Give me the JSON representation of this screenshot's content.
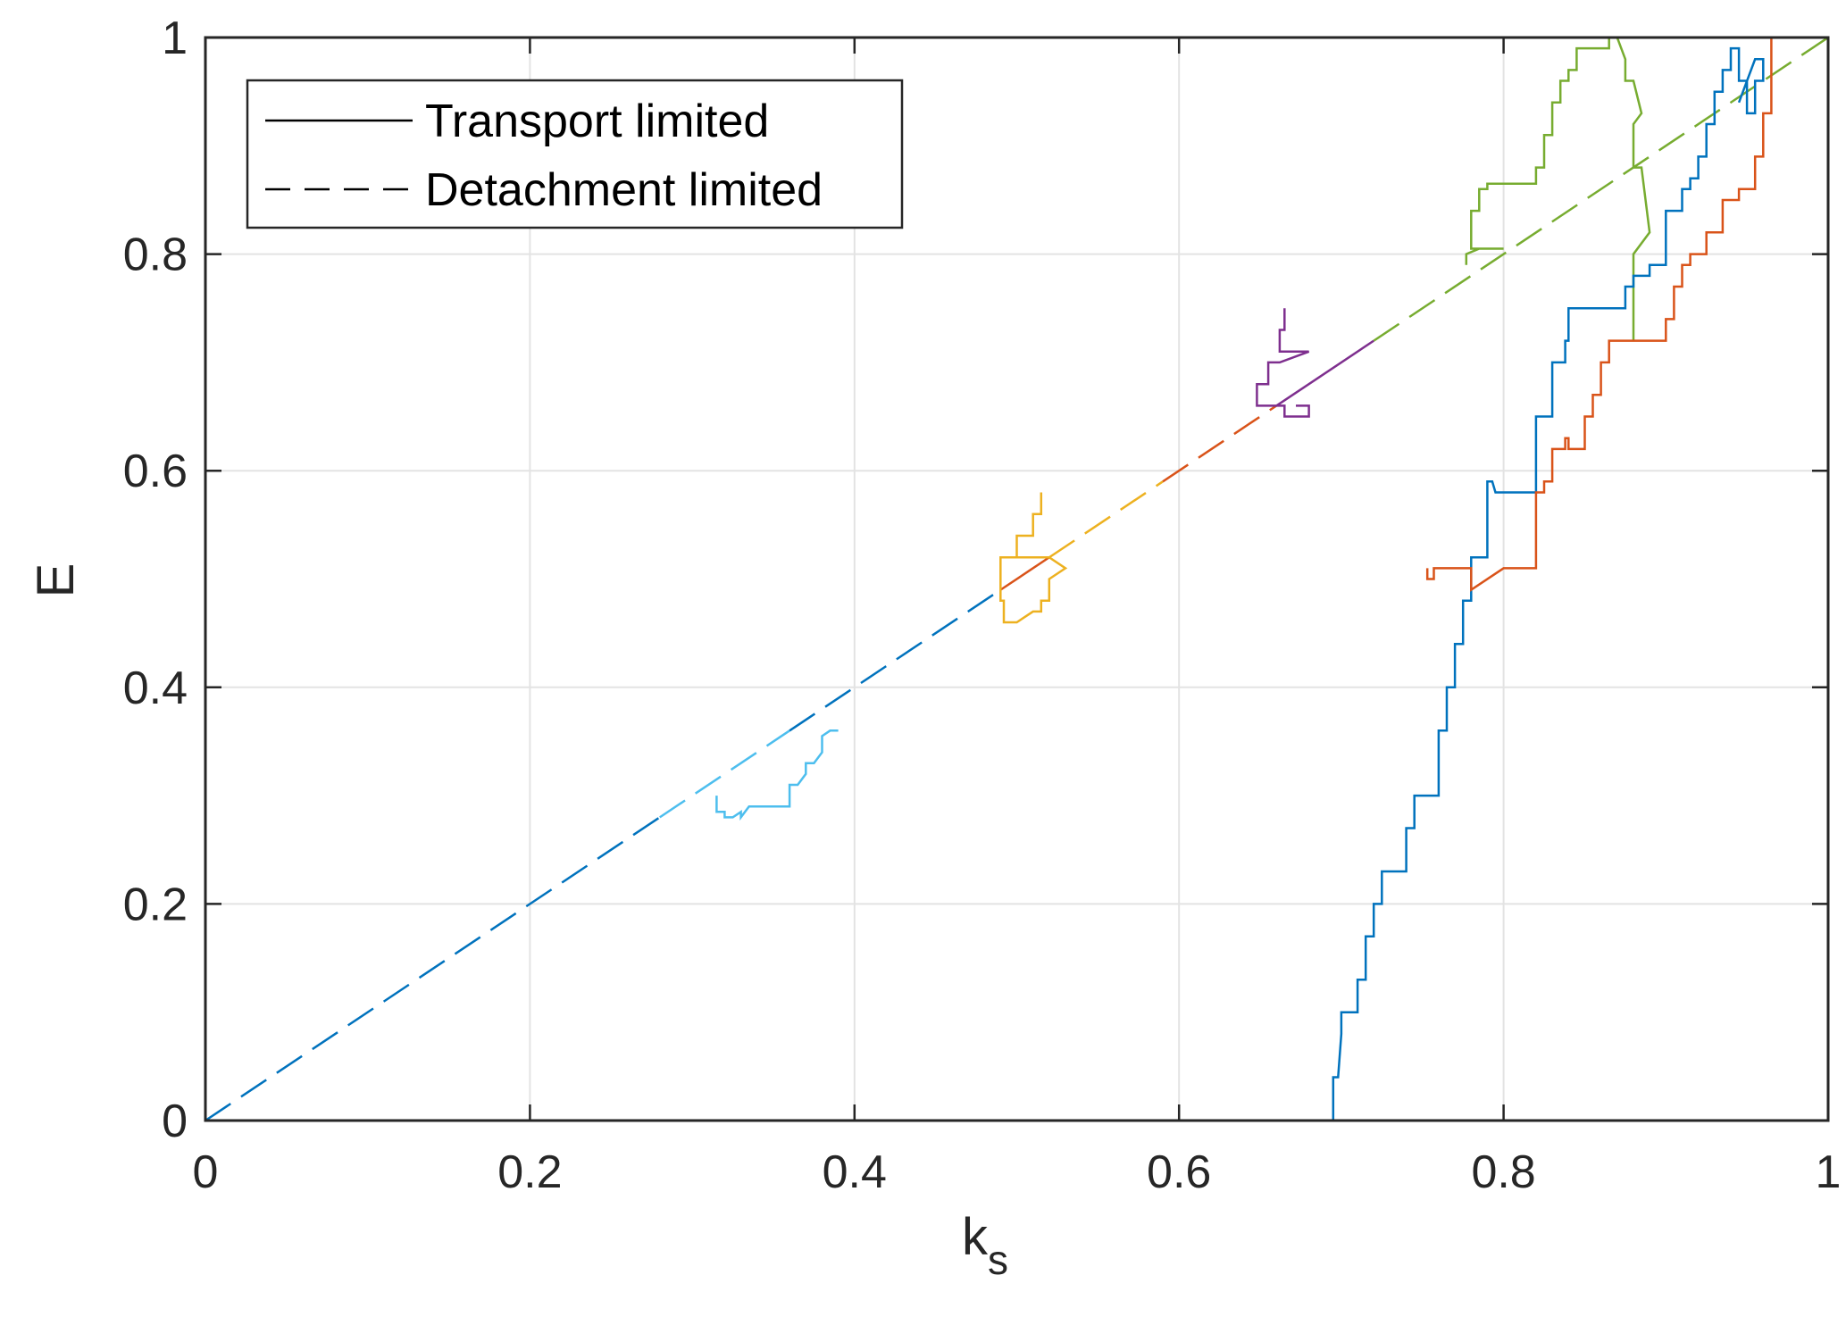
{
  "chart_data": {
    "type": "line",
    "xlabel": "k",
    "xlabel_subscript": "s",
    "ylabel": "E",
    "xlim": [
      0,
      1
    ],
    "ylim": [
      0,
      1
    ],
    "xticks": [
      0,
      0.2,
      0.4,
      0.6,
      0.8,
      1
    ],
    "yticks": [
      0,
      0.2,
      0.4,
      0.6,
      0.8,
      1
    ],
    "xtick_labels": [
      "0",
      "0.2",
      "0.4",
      "0.6",
      "0.8",
      "1"
    ],
    "ytick_labels": [
      "0",
      "0.2",
      "0.4",
      "0.6",
      "0.8",
      "1"
    ],
    "grid": true,
    "legend": {
      "position": "top-left",
      "entries": [
        {
          "label": "Transport limited",
          "style": "solid",
          "color": "#000000"
        },
        {
          "label": "Detachment limited",
          "style": "dashed",
          "color": "#000000"
        }
      ]
    },
    "diagonal": {
      "color": "#0072BD",
      "segments": [
        {
          "color": "#0072BD",
          "style": "dashed",
          "x": [
            0,
            0.28
          ]
        },
        {
          "color": "#4DBEEE",
          "style": "dashed",
          "x": [
            0.28,
            0.36
          ]
        },
        {
          "color": "#0072BD",
          "style": "dashed",
          "x": [
            0.36,
            0.49
          ]
        },
        {
          "color": "#D95319",
          "style": "solid",
          "x": [
            0.49,
            0.52
          ]
        },
        {
          "color": "#EDB120",
          "style": "dashed",
          "x": [
            0.52,
            0.59
          ]
        },
        {
          "color": "#D95319",
          "style": "dashed",
          "x": [
            0.59,
            0.66
          ]
        },
        {
          "color": "#7E2F8E",
          "style": "solid",
          "x": [
            0.66,
            0.72
          ]
        },
        {
          "color": "#77AC30",
          "style": "dashed",
          "x": [
            0.72,
            1.0
          ]
        }
      ]
    },
    "series": [
      {
        "color": "#4DBEEE",
        "x": [
          0.315,
          0.315,
          0.32,
          0.32,
          0.325,
          0.33,
          0.33,
          0.335,
          0.34,
          0.36,
          0.36,
          0.365,
          0.37,
          0.37,
          0.375,
          0.38,
          0.38,
          0.385,
          0.39
        ],
        "y": [
          0.3,
          0.285,
          0.285,
          0.28,
          0.28,
          0.285,
          0.28,
          0.29,
          0.29,
          0.29,
          0.31,
          0.31,
          0.32,
          0.33,
          0.33,
          0.34,
          0.355,
          0.36,
          0.36
        ]
      },
      {
        "color": "#EDB120",
        "x": [
          0.515,
          0.515,
          0.51,
          0.51,
          0.5,
          0.5,
          0.49,
          0.49,
          0.492,
          0.492,
          0.5,
          0.51,
          0.51,
          0.515,
          0.515,
          0.52,
          0.52,
          0.53,
          0.52,
          0.5,
          0.49,
          0.49
        ],
        "y": [
          0.58,
          0.56,
          0.56,
          0.54,
          0.54,
          0.52,
          0.52,
          0.48,
          0.48,
          0.46,
          0.46,
          0.47,
          0.47,
          0.47,
          0.48,
          0.48,
          0.5,
          0.51,
          0.52,
          0.52,
          0.52,
          0.5
        ]
      },
      {
        "color": "#7E2F8E",
        "x": [
          0.665,
          0.665,
          0.662,
          0.662,
          0.67,
          0.68,
          0.662,
          0.655,
          0.655,
          0.648,
          0.648,
          0.66,
          0.665,
          0.665,
          0.68,
          0.68,
          0.672
        ],
        "y": [
          0.75,
          0.73,
          0.73,
          0.71,
          0.71,
          0.71,
          0.7,
          0.7,
          0.68,
          0.68,
          0.66,
          0.66,
          0.66,
          0.65,
          0.65,
          0.66,
          0.66
        ]
      },
      {
        "color": "#77AC30",
        "x": [
          0.777,
          0.777,
          0.785,
          0.8,
          0.78,
          0.78,
          0.785,
          0.785,
          0.79,
          0.79,
          0.82,
          0.82,
          0.825,
          0.825,
          0.83,
          0.83,
          0.835,
          0.835,
          0.84,
          0.84,
          0.845,
          0.845,
          0.865,
          0.865,
          0.87,
          0.875,
          0.875,
          0.88,
          0.885,
          0.88,
          0.88,
          0.885,
          0.89,
          0.88,
          0.88
        ],
        "y": [
          0.79,
          0.8,
          0.805,
          0.805,
          0.805,
          0.84,
          0.84,
          0.86,
          0.86,
          0.865,
          0.865,
          0.88,
          0.88,
          0.91,
          0.91,
          0.94,
          0.94,
          0.96,
          0.96,
          0.97,
          0.97,
          0.99,
          0.99,
          1.0,
          1.0,
          0.98,
          0.96,
          0.96,
          0.93,
          0.92,
          0.88,
          0.88,
          0.82,
          0.8,
          0.72
        ]
      },
      {
        "color": "#0072BD",
        "x": [
          0.695,
          0.695,
          0.698,
          0.7,
          0.7,
          0.71,
          0.71,
          0.715,
          0.715,
          0.72,
          0.72,
          0.725,
          0.725,
          0.73,
          0.73,
          0.74,
          0.74,
          0.745,
          0.745,
          0.75,
          0.75,
          0.76,
          0.76,
          0.765,
          0.765,
          0.77,
          0.77,
          0.775,
          0.775,
          0.78,
          0.78,
          0.79,
          0.79,
          0.793,
          0.795,
          0.81,
          0.81,
          0.82,
          0.82,
          0.83,
          0.83,
          0.838,
          0.838,
          0.84,
          0.84,
          0.87,
          0.87,
          0.875,
          0.875,
          0.88,
          0.88,
          0.89,
          0.89,
          0.9,
          0.9,
          0.91,
          0.91,
          0.915,
          0.915,
          0.92,
          0.92,
          0.925,
          0.925,
          0.93,
          0.93,
          0.935,
          0.935,
          0.94,
          0.94,
          0.945,
          0.945,
          0.95,
          0.95,
          0.955,
          0.955,
          0.96,
          0.96,
          0.955,
          0.945
        ],
        "y": [
          0.0,
          0.04,
          0.04,
          0.08,
          0.1,
          0.1,
          0.13,
          0.13,
          0.17,
          0.17,
          0.2,
          0.2,
          0.23,
          0.23,
          0.23,
          0.23,
          0.27,
          0.27,
          0.3,
          0.3,
          0.3,
          0.3,
          0.36,
          0.36,
          0.4,
          0.4,
          0.44,
          0.44,
          0.48,
          0.48,
          0.52,
          0.52,
          0.59,
          0.59,
          0.58,
          0.58,
          0.58,
          0.58,
          0.65,
          0.65,
          0.7,
          0.7,
          0.72,
          0.72,
          0.75,
          0.75,
          0.75,
          0.75,
          0.77,
          0.77,
          0.78,
          0.78,
          0.79,
          0.79,
          0.84,
          0.84,
          0.86,
          0.86,
          0.87,
          0.87,
          0.89,
          0.89,
          0.92,
          0.92,
          0.95,
          0.95,
          0.97,
          0.97,
          0.99,
          0.99,
          0.96,
          0.96,
          0.93,
          0.93,
          0.96,
          0.96,
          0.98,
          0.98,
          0.94
        ]
      },
      {
        "color": "#D95319",
        "x": [
          0.753,
          0.753,
          0.757,
          0.757,
          0.78,
          0.78,
          0.8,
          0.82,
          0.82,
          0.825,
          0.825,
          0.83,
          0.83,
          0.838,
          0.838,
          0.84,
          0.84,
          0.85,
          0.85,
          0.855,
          0.855,
          0.86,
          0.86,
          0.865,
          0.865,
          0.87,
          0.87,
          0.9,
          0.9,
          0.905,
          0.905,
          0.91,
          0.91,
          0.915,
          0.915,
          0.925,
          0.925,
          0.935,
          0.935,
          0.945,
          0.945,
          0.955,
          0.955,
          0.96,
          0.96,
          0.965,
          0.965
        ],
        "y": [
          0.51,
          0.5,
          0.5,
          0.51,
          0.51,
          0.49,
          0.51,
          0.51,
          0.58,
          0.58,
          0.59,
          0.59,
          0.62,
          0.62,
          0.63,
          0.63,
          0.62,
          0.62,
          0.65,
          0.65,
          0.67,
          0.67,
          0.7,
          0.7,
          0.72,
          0.72,
          0.72,
          0.72,
          0.74,
          0.74,
          0.77,
          0.77,
          0.79,
          0.79,
          0.8,
          0.8,
          0.82,
          0.82,
          0.85,
          0.85,
          0.86,
          0.86,
          0.89,
          0.89,
          0.93,
          0.93,
          1.0
        ]
      }
    ]
  }
}
